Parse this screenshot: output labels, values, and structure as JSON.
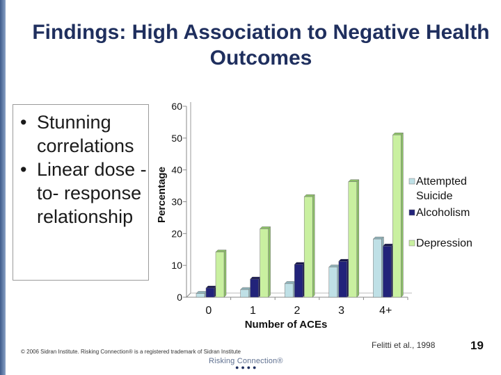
{
  "title": "Findings: High Association to Negative Health Outcomes",
  "bullets": [
    "Stunning correlations",
    "Linear dose -to- response relationship"
  ],
  "footer": {
    "copyright": "© 2006 Sidran Institute. Risking Connection® is a registered trademark of Sidran Institute",
    "citation": "Felitti et al., 1998",
    "page_number": "19",
    "logo_text": "Risking Connection®"
  },
  "colors": {
    "attempted_suicide": "#bfe0e6",
    "alcoholism": "#22237a",
    "depression": "#c9f0a0",
    "title": "#1f2f5e"
  },
  "chart_data": {
    "type": "bar",
    "title": "",
    "xlabel": "Number of ACEs",
    "ylabel": "Percentage",
    "categories": [
      "0",
      "1",
      "2",
      "3",
      "4+"
    ],
    "ylim": [
      0,
      60
    ],
    "yticks": [
      0,
      10,
      20,
      30,
      40,
      50,
      60
    ],
    "grid": false,
    "legend_position": "right",
    "series": [
      {
        "name": "Attempted Suicide",
        "values": [
          1.2,
          2.4,
          4.3,
          9.5,
          18.3
        ]
      },
      {
        "name": "Alcoholism",
        "values": [
          2.9,
          5.7,
          10.3,
          11.3,
          16.1
        ]
      },
      {
        "name": "Depression",
        "values": [
          14.2,
          21.5,
          31.6,
          36.3,
          51.0
        ]
      }
    ]
  }
}
